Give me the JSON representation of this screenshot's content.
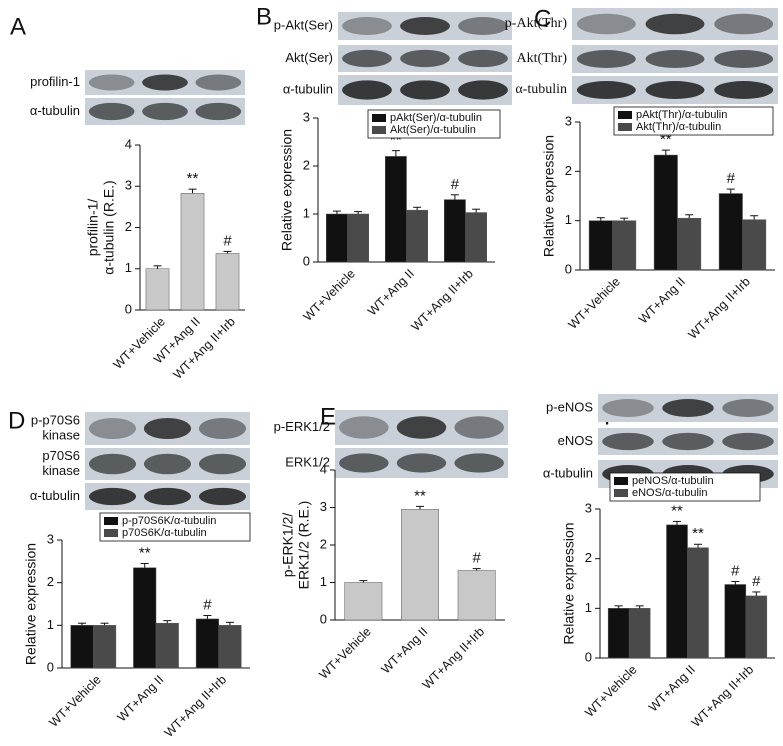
{
  "chart_data": [
    {
      "type": "bar",
      "panel": "A",
      "blots": [
        "profilin-1",
        "α-tubulin"
      ],
      "ylabel": [
        "profilin-1/",
        "α-tubulin (R.E.)"
      ],
      "categories": [
        "WT+Vehicle",
        "WT+Ang II",
        "WT+Ang II+Irb"
      ],
      "values": [
        1.0,
        2.83,
        1.37
      ],
      "errors": [
        0.07,
        0.1,
        0.05
      ],
      "annotations": [
        null,
        "**",
        "#"
      ],
      "color": "#c8c8c8",
      "ylim": [
        0,
        4
      ],
      "yticks": [
        0,
        1,
        2,
        3,
        4
      ]
    },
    {
      "type": "grouped_bar",
      "panel": "B",
      "blots": [
        "p-Akt(Ser)",
        "Akt(Ser)",
        "α-tubulin"
      ],
      "ylabel": "Relative expression",
      "categories": [
        "WT+Vehicle",
        "WT+Ang II",
        "WT+Ang II+Irb"
      ],
      "series": [
        {
          "name": "pAkt(Ser)/α-tubulin",
          "color": "#111111",
          "values": [
            1.0,
            2.2,
            1.3
          ],
          "errors": [
            0.06,
            0.12,
            0.1
          ],
          "annotations": [
            null,
            "**",
            "#"
          ]
        },
        {
          "name": "Akt(Ser)/α-tubulin",
          "color": "#4a4a4a",
          "values": [
            1.0,
            1.08,
            1.03
          ],
          "errors": [
            0.05,
            0.06,
            0.07
          ]
        }
      ],
      "ylim": [
        0,
        3
      ],
      "yticks": [
        0,
        1,
        2,
        3
      ]
    },
    {
      "type": "grouped_bar",
      "panel": "C",
      "blots": [
        "p-Akt(Thr)",
        "Akt(Thr)",
        "α-tubulin"
      ],
      "ylabel": "Relative expression",
      "categories": [
        "WT+Vehicle",
        "WT+Ang II",
        "WT+Ang II+Irb"
      ],
      "series": [
        {
          "name": "pAkt(Thr)/α-tubulin",
          "color": "#111111",
          "values": [
            1.0,
            2.33,
            1.55
          ],
          "errors": [
            0.06,
            0.1,
            0.09
          ],
          "annotations": [
            null,
            "**",
            "#"
          ]
        },
        {
          "name": "Akt(Thr)/α-tubulin",
          "color": "#4a4a4a",
          "values": [
            1.0,
            1.05,
            1.02
          ],
          "errors": [
            0.05,
            0.07,
            0.08
          ]
        }
      ],
      "ylim": [
        0,
        3
      ],
      "yticks": [
        0,
        1,
        2,
        3
      ]
    },
    {
      "type": "grouped_bar",
      "panel": "D",
      "blots": [
        [
          "p-p70S6",
          "kinase"
        ],
        [
          "p70S6",
          "kinase"
        ],
        "α-tubulin"
      ],
      "ylabel": "Relative expression",
      "categories": [
        "WT+Vehicle",
        "WT+Ang II",
        "WT+Ang II+Irb"
      ],
      "series": [
        {
          "name": "p-p70S6K/α-tubulin",
          "color": "#111111",
          "values": [
            1.0,
            2.35,
            1.15
          ],
          "errors": [
            0.05,
            0.1,
            0.08
          ],
          "annotations": [
            null,
            "**",
            "#"
          ]
        },
        {
          "name": "p70S6K/α-tubulin",
          "color": "#4a4a4a",
          "values": [
            1.0,
            1.05,
            1.0
          ],
          "errors": [
            0.05,
            0.06,
            0.07
          ]
        }
      ],
      "ylim": [
        0,
        3
      ],
      "yticks": [
        0,
        1,
        2,
        3
      ]
    },
    {
      "type": "bar",
      "panel": "E",
      "blots": [
        "p-ERK1/2",
        "ERK1/2"
      ],
      "ylabel": [
        "p-ERK1/2/",
        "ERK1/2 (R.E.)"
      ],
      "categories": [
        "WT+Vehicle",
        "WT+Ang II",
        "WT+Ang II+Irb"
      ],
      "values": [
        1.0,
        2.95,
        1.32
      ],
      "errors": [
        0.05,
        0.08,
        0.05
      ],
      "annotations": [
        null,
        "**",
        "#"
      ],
      "color": "#c8c8c8",
      "ylim": [
        0,
        4
      ],
      "yticks": [
        0,
        1,
        2,
        3,
        4
      ]
    },
    {
      "type": "grouped_bar",
      "panel": "F",
      "blots": [
        "p-eNOS",
        "eNOS",
        "α-tubulin"
      ],
      "ylabel": "Relative expression",
      "categories": [
        "WT+Vehicle",
        "WT+Ang II",
        "WT+Ang II+Irb"
      ],
      "series": [
        {
          "name": "peNOS/α-tubulin",
          "color": "#111111",
          "values": [
            1.0,
            2.68,
            1.48
          ],
          "errors": [
            0.05,
            0.07,
            0.06
          ],
          "annotations": [
            null,
            "**",
            "#"
          ]
        },
        {
          "name": "eNOS/α-tubulin",
          "color": "#4a4a4a",
          "values": [
            1.0,
            2.22,
            1.25
          ],
          "errors": [
            0.05,
            0.07,
            0.08
          ],
          "annotations": [
            null,
            "**",
            "#"
          ]
        }
      ],
      "ylim": [
        0,
        3
      ],
      "yticks": [
        0,
        1,
        2,
        3
      ]
    }
  ]
}
